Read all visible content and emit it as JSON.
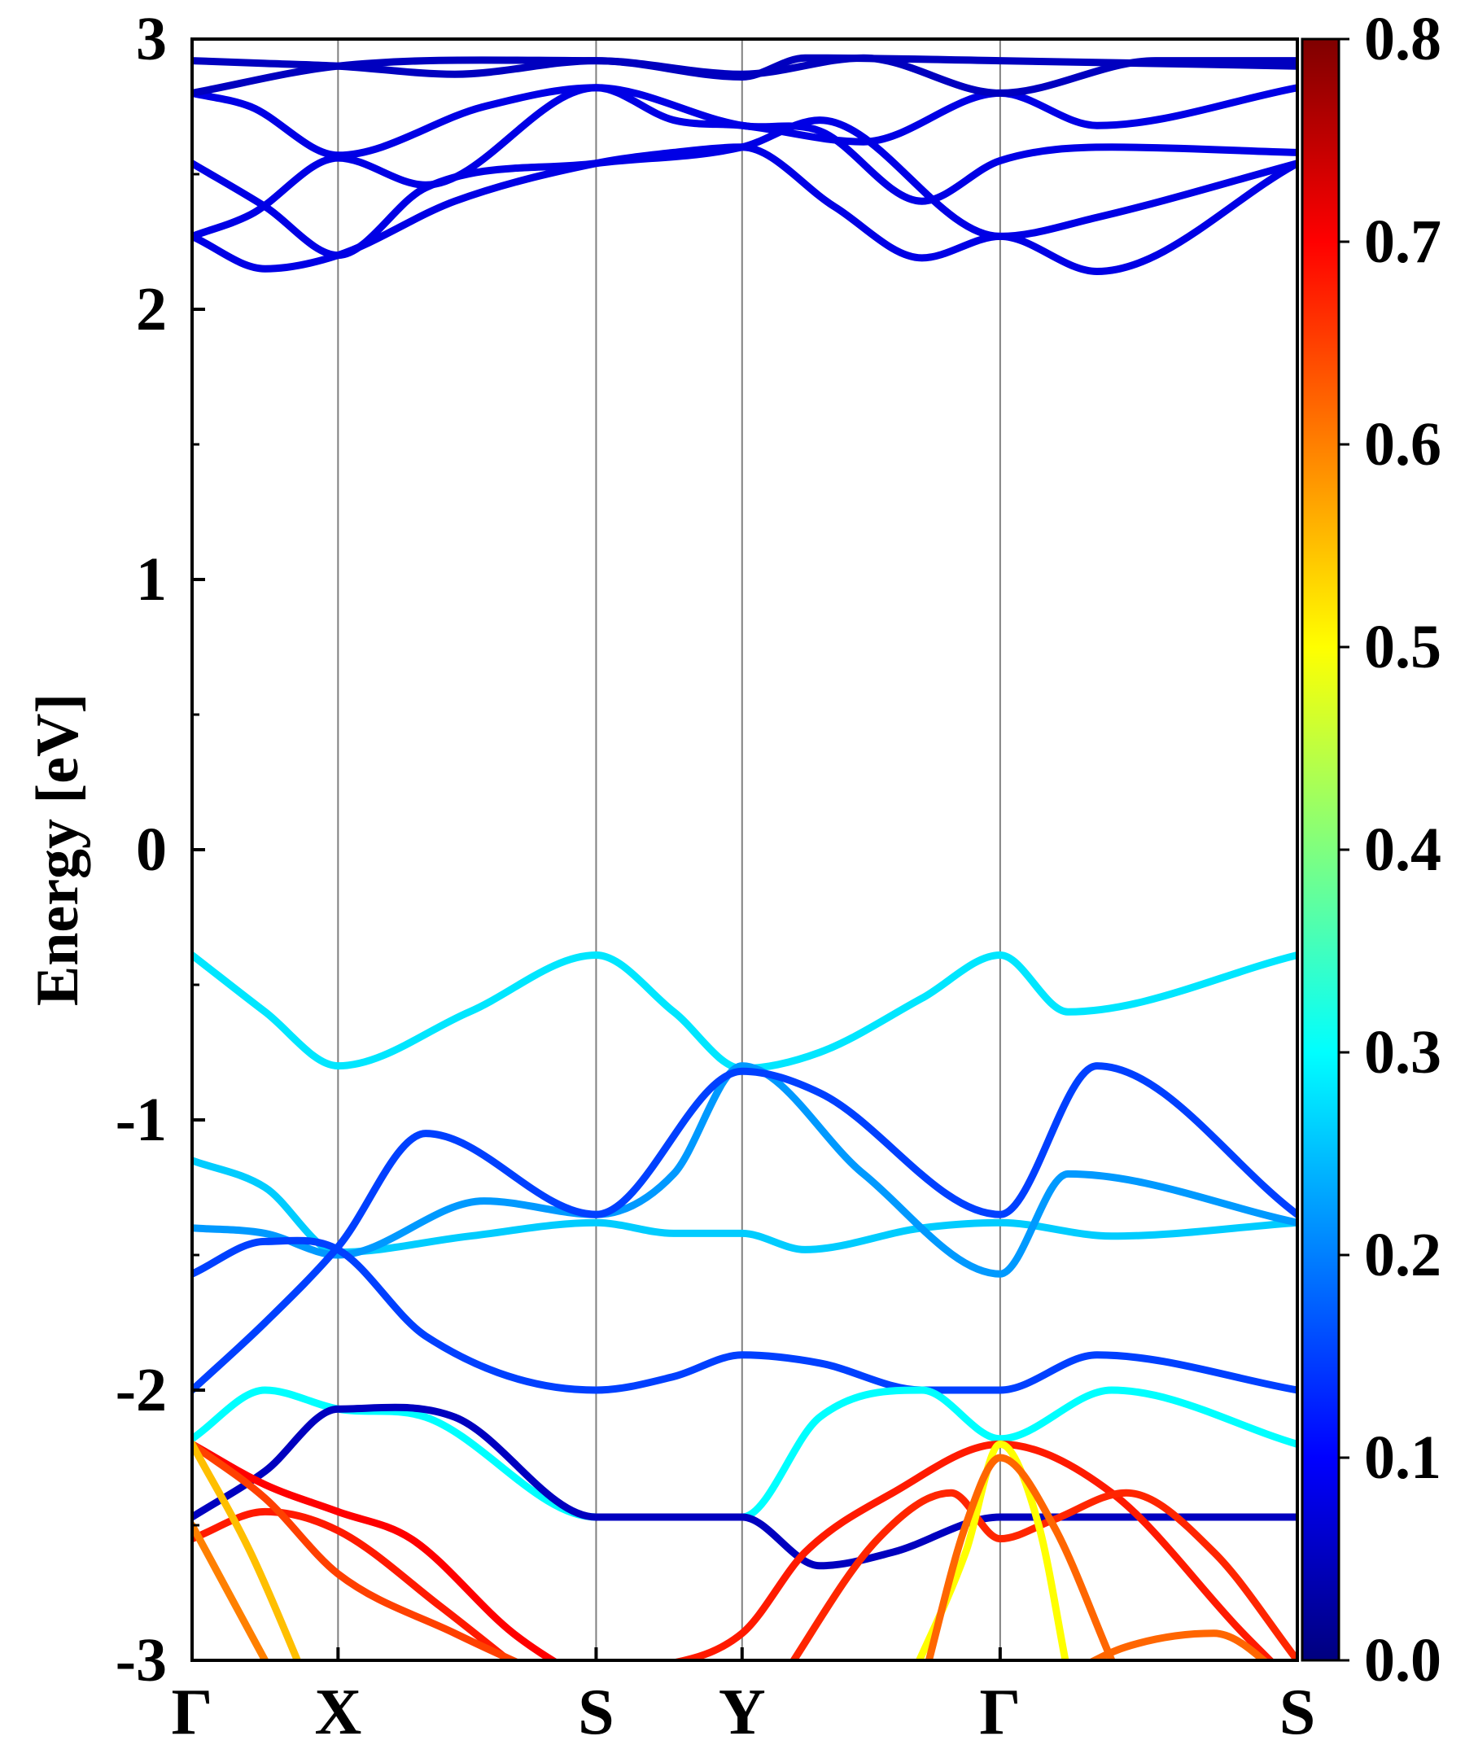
{
  "chart_data": {
    "type": "line",
    "subtype": "band-structure-projected",
    "ylabel": "Energy [eV]",
    "ylim": [
      -3,
      3
    ],
    "y_ticks": [
      "3",
      "2",
      "1",
      "0",
      "-1",
      "-2",
      "-3"
    ],
    "y_tick_values": [
      3,
      2,
      1,
      0,
      -1,
      -2,
      -3
    ],
    "kpath_labels": [
      "Γ",
      "X",
      "S",
      "Y",
      "Γ",
      "S"
    ],
    "kpath_positions": [
      0,
      1,
      2.768,
      3.768,
      5.536,
      7.572
    ],
    "colorbar": {
      "colormap": "jet",
      "range": [
        0.0,
        0.8
      ],
      "tick_labels": [
        "0.8",
        "0.7",
        "0.6",
        "0.5",
        "0.4",
        "0.3",
        "0.2",
        "0.1",
        "0.0"
      ],
      "tick_values": [
        0.8,
        0.7,
        0.6,
        0.5,
        0.4,
        0.3,
        0.2,
        0.1,
        0.0
      ]
    },
    "series": [
      {
        "name": "cb1",
        "k": [
          0,
          0.5,
          1,
          1.8,
          2.768,
          3.3,
          3.768,
          4.4,
          5.0,
          5.536,
          6.2,
          7.572
        ],
        "energy": [
          2.27,
          2.15,
          2.2,
          2.4,
          2.54,
          2.58,
          2.6,
          2.38,
          2.19,
          2.27,
          2.14,
          2.54
        ],
        "weight": 0.08
      },
      {
        "name": "cb2",
        "k": [
          0,
          0.5,
          1,
          1.6,
          2.768,
          3.768,
          4.3,
          5.536,
          6.2,
          7.572
        ],
        "energy": [
          2.54,
          2.38,
          2.2,
          2.45,
          2.54,
          2.6,
          2.7,
          2.27,
          2.34,
          2.54
        ],
        "weight": 0.08
      },
      {
        "name": "cb3",
        "k": [
          0,
          0.4,
          1,
          1.6,
          2.768,
          3.768,
          4.3,
          5.0,
          5.536,
          6.3,
          7.572
        ],
        "energy": [
          2.27,
          2.35,
          2.56,
          2.46,
          2.82,
          2.68,
          2.66,
          2.4,
          2.55,
          2.6,
          2.58
        ],
        "weight": 0.08
      },
      {
        "name": "cb4",
        "k": [
          0,
          0.4,
          1,
          2.0,
          2.768,
          3.3,
          3.768,
          4.6,
          5.536,
          6.2,
          7.572
        ],
        "energy": [
          2.8,
          2.75,
          2.57,
          2.75,
          2.82,
          2.7,
          2.68,
          2.62,
          2.8,
          2.68,
          2.82
        ],
        "weight": 0.08
      },
      {
        "name": "cb5",
        "k": [
          0,
          0.5,
          1,
          1.8,
          2.768,
          3.768,
          4.6,
          5.536,
          6.6,
          7.572
        ],
        "energy": [
          2.92,
          2.91,
          2.9,
          2.87,
          2.92,
          2.87,
          2.93,
          2.8,
          2.92,
          2.92
        ],
        "weight": 0.05
      },
      {
        "name": "cb6",
        "k": [
          0,
          1,
          2.768,
          3.768,
          4.2,
          5.536,
          7.572
        ],
        "energy": [
          2.8,
          2.9,
          2.92,
          2.86,
          2.93,
          2.92,
          2.9
        ],
        "weight": 0.05
      },
      {
        "name": "vb1",
        "k": [
          0,
          0.5,
          1,
          1.9,
          2.768,
          3.3,
          3.768,
          4.3,
          5.0,
          5.536,
          6.0,
          7.572
        ],
        "energy": [
          -0.39,
          -0.6,
          -0.8,
          -0.6,
          -0.39,
          -0.6,
          -0.81,
          -0.75,
          -0.55,
          -0.39,
          -0.6,
          -0.39
        ],
        "weight": 0.28
      },
      {
        "name": "vb2",
        "k": [
          0,
          0.5,
          1,
          1.9,
          2.768,
          3.3,
          3.768,
          4.2,
          5.0,
          5.536,
          6.3,
          7.572
        ],
        "energy": [
          -1.15,
          -1.25,
          -1.49,
          -1.43,
          -1.38,
          -1.42,
          -1.42,
          -1.48,
          -1.4,
          -1.38,
          -1.43,
          -1.38
        ],
        "weight": 0.26
      },
      {
        "name": "vb3",
        "k": [
          0,
          0.5,
          1,
          2.0,
          2.768,
          3.3,
          3.768,
          4.6,
          5.536,
          6.0,
          7.572
        ],
        "energy": [
          -1.4,
          -1.42,
          -1.5,
          -1.3,
          -1.35,
          -1.2,
          -0.8,
          -1.2,
          -1.57,
          -1.2,
          -1.38
        ],
        "weight": 0.22
      },
      {
        "name": "vb4",
        "k": [
          0,
          0.5,
          1,
          1.6,
          2.768,
          3.3,
          3.768,
          4.3,
          5.0,
          5.536,
          6.2,
          7.572
        ],
        "energy": [
          -1.57,
          -1.45,
          -1.48,
          -1.8,
          -2.0,
          -1.95,
          -1.87,
          -1.9,
          -2.0,
          -2.0,
          -1.87,
          -2.0
        ],
        "weight": 0.15
      },
      {
        "name": "vb5",
        "k": [
          0,
          0.5,
          1,
          1.6,
          2.768,
          3.768,
          4.3,
          5.536,
          6.2,
          7.572
        ],
        "energy": [
          -2.0,
          -1.75,
          -1.47,
          -1.05,
          -1.35,
          -0.82,
          -0.9,
          -1.35,
          -0.8,
          -1.35
        ],
        "weight": 0.15
      },
      {
        "name": "vb6",
        "k": [
          0,
          0.5,
          1,
          1.6,
          2.768,
          3.768,
          4.3,
          5.0,
          5.536,
          6.3,
          7.572
        ],
        "energy": [
          -2.18,
          -2.0,
          -2.07,
          -2.1,
          -2.47,
          -2.47,
          -2.1,
          -2.0,
          -2.18,
          -2.0,
          -2.2
        ],
        "weight": 0.3
      },
      {
        "name": "vb7",
        "k": [
          0,
          0.5,
          1,
          1.8,
          2.768,
          3.768,
          4.3,
          4.8,
          5.536,
          6.3,
          7.572
        ],
        "energy": [
          -2.47,
          -2.3,
          -2.07,
          -2.1,
          -2.47,
          -2.47,
          -2.65,
          -2.6,
          -2.47,
          -2.47,
          -2.47
        ],
        "weight": 0.05
      },
      {
        "name": "vb8",
        "k": [
          0,
          0.5,
          1,
          1.5,
          2.2,
          2.768
        ],
        "energy": [
          -2.2,
          -2.35,
          -2.45,
          -2.55,
          -2.9,
          -3.1
        ],
        "weight": 0.7
      },
      {
        "name": "vb9",
        "k": [
          0,
          0.5,
          1,
          1.7,
          2.4
        ],
        "energy": [
          -2.55,
          -2.45,
          -2.52,
          -2.8,
          -3.1
        ],
        "weight": 0.68
      },
      {
        "name": "vb10",
        "k": [
          0,
          0.5,
          1,
          1.8,
          2.6
        ],
        "energy": [
          -2.2,
          -2.4,
          -2.68,
          -2.9,
          -3.1
        ],
        "weight": 0.65
      },
      {
        "name": "vb11",
        "k": [
          0,
          0.4,
          0.8
        ],
        "energy": [
          -2.2,
          -2.6,
          -3.1
        ],
        "weight": 0.55
      },
      {
        "name": "vb12",
        "k": [
          0,
          0.3,
          0.6
        ],
        "energy": [
          -2.5,
          -2.8,
          -3.1
        ],
        "weight": 0.6
      },
      {
        "name": "vb13",
        "k": [
          3.0,
          3.768,
          4.2,
          4.8,
          5.536,
          6.3,
          7.2,
          7.572
        ],
        "energy": [
          -3.05,
          -2.9,
          -2.6,
          -2.38,
          -2.2,
          -2.38,
          -2.9,
          -3.1
        ],
        "weight": 0.68
      },
      {
        "name": "vb14",
        "k": [
          4.0,
          4.7,
          5.2,
          5.536,
          5.9,
          6.4,
          7.0,
          7.572
        ],
        "energy": [
          -3.1,
          -2.55,
          -2.38,
          -2.55,
          -2.48,
          -2.38,
          -2.6,
          -3.0
        ],
        "weight": 0.67
      },
      {
        "name": "vb15",
        "k": [
          4.9,
          5.3,
          5.536,
          5.8,
          6.0
        ],
        "energy": [
          -3.1,
          -2.6,
          -2.2,
          -2.5,
          -3.05
        ],
        "weight": 0.5
      },
      {
        "name": "vb16",
        "k": [
          5.0,
          5.3,
          5.536,
          5.9,
          6.3
        ],
        "energy": [
          -3.1,
          -2.5,
          -2.25,
          -2.5,
          -3.0
        ],
        "weight": 0.62
      },
      {
        "name": "vb17",
        "k": [
          6.0,
          6.4,
          7.0,
          7.572
        ],
        "energy": [
          -3.05,
          -2.95,
          -2.9,
          -3.1
        ],
        "weight": 0.62
      }
    ]
  }
}
